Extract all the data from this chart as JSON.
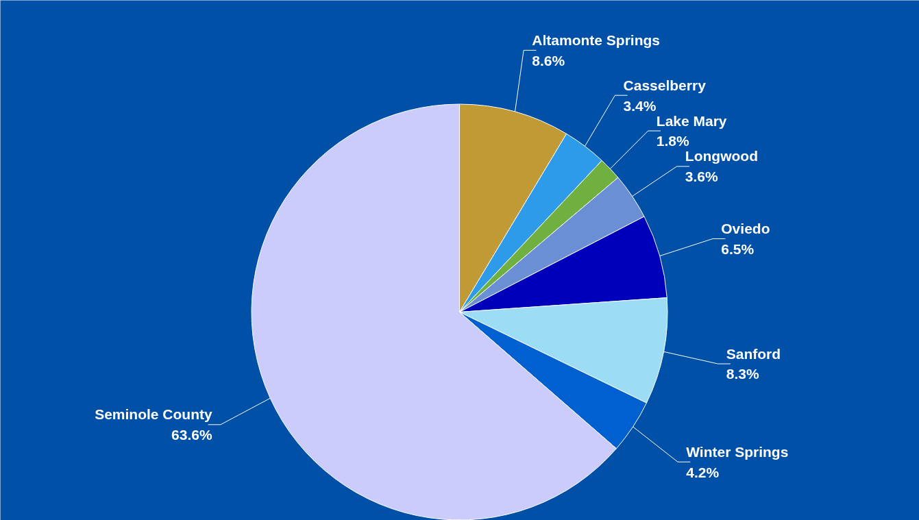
{
  "chart_data": {
    "type": "pie",
    "categories": [
      "Altamonte Springs",
      "Casselberry",
      "Lake Mary",
      "Longwood",
      "Oviedo",
      "Sanford",
      "Winter Springs",
      "Seminole County"
    ],
    "values": [
      8.6,
      3.4,
      1.8,
      3.6,
      6.5,
      8.3,
      4.2,
      63.6
    ],
    "value_labels": [
      "8.6%",
      "3.4%",
      "1.8%",
      "3.6%",
      "6.5%",
      "8.3%",
      "4.2%",
      "63.6%"
    ],
    "colors": [
      "#bf9a35",
      "#2e9be8",
      "#70b040",
      "#6a8fd4",
      "#0000bb",
      "#9ddcf5",
      "#0060d0",
      "#ccccfc"
    ]
  }
}
